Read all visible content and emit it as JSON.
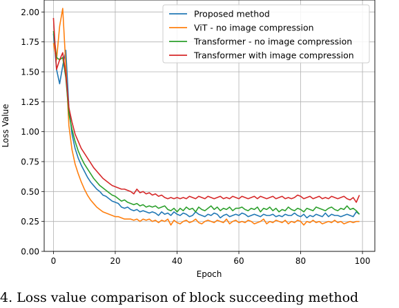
{
  "chart_data": {
    "type": "line",
    "xlabel": "Epoch",
    "ylabel": "Loss Value",
    "xlim": [
      -3,
      104
    ],
    "ylim": [
      0.0,
      2.1
    ],
    "xticks": [
      0,
      20,
      40,
      60,
      80,
      100
    ],
    "yticks": [
      0.0,
      0.25,
      0.5,
      0.75,
      1.0,
      1.25,
      1.5,
      1.75,
      2.0
    ],
    "xtick_labels": [
      "0",
      "20",
      "40",
      "60",
      "80",
      "100"
    ],
    "ytick_labels": [
      "0.00",
      "0.25",
      "0.50",
      "0.75",
      "1.00",
      "1.25",
      "1.50",
      "1.75",
      "2.00"
    ],
    "grid": true,
    "legend_position": "top-right",
    "series": [
      {
        "name": "Proposed method",
        "color": "#1f77b4",
        "values": [
          1.82,
          1.52,
          1.4,
          1.55,
          1.68,
          1.2,
          0.98,
          0.86,
          0.78,
          0.72,
          0.67,
          0.62,
          0.58,
          0.55,
          0.52,
          0.5,
          0.47,
          0.46,
          0.44,
          0.42,
          0.41,
          0.4,
          0.37,
          0.36,
          0.37,
          0.35,
          0.34,
          0.35,
          0.33,
          0.34,
          0.33,
          0.32,
          0.33,
          0.32,
          0.3,
          0.33,
          0.31,
          0.32,
          0.3,
          0.33,
          0.31,
          0.3,
          0.32,
          0.31,
          0.29,
          0.3,
          0.33,
          0.31,
          0.3,
          0.29,
          0.31,
          0.3,
          0.32,
          0.31,
          0.28,
          0.3,
          0.31,
          0.29,
          0.3,
          0.31,
          0.3,
          0.32,
          0.31,
          0.29,
          0.3,
          0.31,
          0.3,
          0.29,
          0.31,
          0.3,
          0.3,
          0.31,
          0.29,
          0.3,
          0.29,
          0.31,
          0.3,
          0.3,
          0.32,
          0.3,
          0.29,
          0.31,
          0.28,
          0.3,
          0.29,
          0.31,
          0.3,
          0.29,
          0.32,
          0.29,
          0.31,
          0.3,
          0.3,
          0.29,
          0.3,
          0.31,
          0.3,
          0.29,
          0.33,
          0.31
        ]
      },
      {
        "name": "ViT - no image compression",
        "color": "#ff7f0e",
        "values": [
          1.74,
          1.6,
          1.88,
          2.03,
          1.55,
          1.05,
          0.85,
          0.73,
          0.65,
          0.58,
          0.52,
          0.47,
          0.43,
          0.4,
          0.37,
          0.35,
          0.33,
          0.32,
          0.31,
          0.3,
          0.29,
          0.29,
          0.28,
          0.27,
          0.27,
          0.27,
          0.26,
          0.27,
          0.25,
          0.27,
          0.26,
          0.27,
          0.25,
          0.26,
          0.24,
          0.26,
          0.25,
          0.27,
          0.22,
          0.26,
          0.24,
          0.23,
          0.25,
          0.26,
          0.24,
          0.25,
          0.27,
          0.24,
          0.23,
          0.25,
          0.26,
          0.25,
          0.24,
          0.26,
          0.25,
          0.24,
          0.27,
          0.23,
          0.25,
          0.26,
          0.24,
          0.25,
          0.24,
          0.26,
          0.25,
          0.23,
          0.24,
          0.25,
          0.27,
          0.23,
          0.25,
          0.24,
          0.26,
          0.25,
          0.24,
          0.26,
          0.23,
          0.25,
          0.24,
          0.26,
          0.25,
          0.22,
          0.25,
          0.24,
          0.26,
          0.24,
          0.25,
          0.23,
          0.24,
          0.25,
          0.24,
          0.26,
          0.24,
          0.25,
          0.23,
          0.24,
          0.25,
          0.24,
          0.25,
          0.25
        ]
      },
      {
        "name": "Transformer - no image compression",
        "color": "#2ca02c",
        "values": [
          1.84,
          1.62,
          1.6,
          1.62,
          1.45,
          1.15,
          1.02,
          0.92,
          0.84,
          0.78,
          0.73,
          0.69,
          0.65,
          0.61,
          0.58,
          0.55,
          0.53,
          0.51,
          0.49,
          0.47,
          0.46,
          0.44,
          0.42,
          0.43,
          0.41,
          0.4,
          0.39,
          0.4,
          0.38,
          0.39,
          0.37,
          0.38,
          0.37,
          0.38,
          0.36,
          0.37,
          0.38,
          0.35,
          0.34,
          0.36,
          0.33,
          0.36,
          0.34,
          0.37,
          0.35,
          0.36,
          0.33,
          0.37,
          0.35,
          0.34,
          0.36,
          0.38,
          0.35,
          0.37,
          0.34,
          0.36,
          0.35,
          0.37,
          0.34,
          0.36,
          0.36,
          0.37,
          0.35,
          0.34,
          0.36,
          0.35,
          0.37,
          0.33,
          0.36,
          0.35,
          0.37,
          0.34,
          0.36,
          0.33,
          0.35,
          0.34,
          0.37,
          0.35,
          0.34,
          0.36,
          0.35,
          0.33,
          0.36,
          0.35,
          0.34,
          0.37,
          0.36,
          0.35,
          0.34,
          0.36,
          0.37,
          0.35,
          0.34,
          0.36,
          0.35,
          0.38,
          0.35,
          0.36,
          0.34,
          0.31
        ]
      },
      {
        "name": "Transformer with image compression",
        "color": "#d62728",
        "values": [
          1.95,
          1.52,
          1.6,
          1.66,
          1.48,
          1.2,
          1.08,
          0.98,
          0.92,
          0.86,
          0.82,
          0.78,
          0.74,
          0.7,
          0.67,
          0.64,
          0.61,
          0.59,
          0.57,
          0.55,
          0.54,
          0.53,
          0.52,
          0.52,
          0.51,
          0.5,
          0.48,
          0.52,
          0.49,
          0.5,
          0.48,
          0.49,
          0.47,
          0.48,
          0.46,
          0.47,
          0.45,
          0.44,
          0.45,
          0.44,
          0.45,
          0.44,
          0.45,
          0.44,
          0.46,
          0.45,
          0.44,
          0.46,
          0.45,
          0.44,
          0.46,
          0.45,
          0.44,
          0.45,
          0.46,
          0.44,
          0.45,
          0.44,
          0.46,
          0.45,
          0.44,
          0.46,
          0.45,
          0.44,
          0.45,
          0.46,
          0.44,
          0.46,
          0.45,
          0.44,
          0.45,
          0.46,
          0.44,
          0.45,
          0.46,
          0.44,
          0.45,
          0.44,
          0.45,
          0.47,
          0.46,
          0.44,
          0.45,
          0.46,
          0.44,
          0.45,
          0.46,
          0.44,
          0.45,
          0.44,
          0.46,
          0.45,
          0.44,
          0.45,
          0.46,
          0.44,
          0.43,
          0.45,
          0.41,
          0.47
        ]
      }
    ]
  },
  "caption": "4. Loss value comparison of block succeeding method"
}
